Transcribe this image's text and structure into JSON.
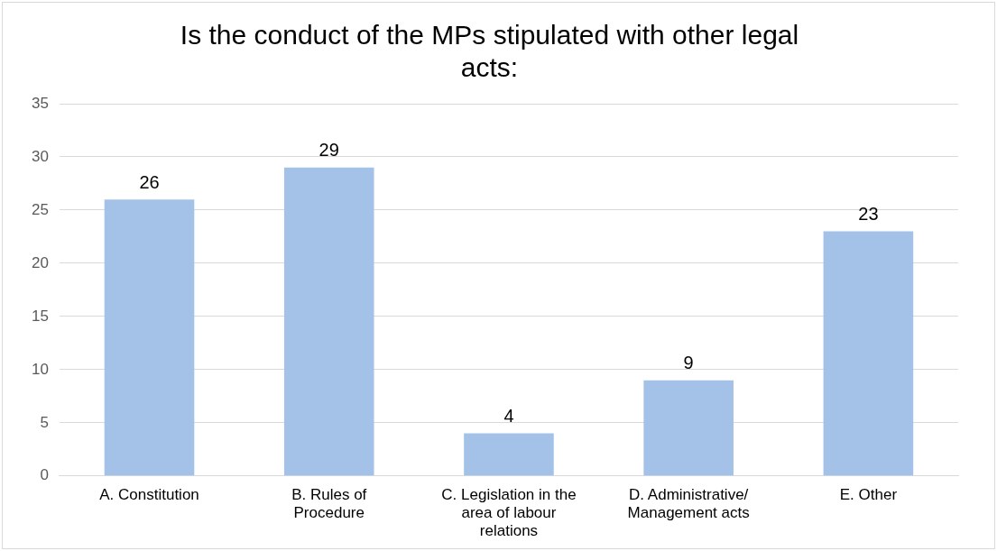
{
  "chart_data": {
    "type": "bar",
    "title": "Is the conduct of the MPs stipulated with other legal acts:",
    "categories": [
      "A. Constitution",
      "B. Rules of Procedure",
      "C. Legislation in the area of labour relations",
      "D. Administrative/ Management acts",
      "E. Other"
    ],
    "values": [
      26,
      29,
      4,
      9,
      23
    ],
    "color": "#a4c2e8",
    "ylim": [
      0,
      35
    ],
    "yticks": [
      0,
      5,
      10,
      15,
      20,
      25,
      30,
      35
    ],
    "grid": "y",
    "data_labels": true,
    "legend": false
  }
}
